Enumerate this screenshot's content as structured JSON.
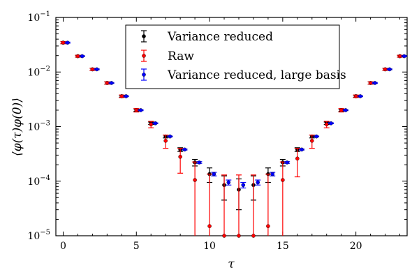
{
  "chart_data": {
    "type": "scatter",
    "title": "",
    "xlabel": "τ",
    "ylabel": "⟨φ(τ)φ(0)⟩",
    "xlim": [
      -0.5,
      23.5
    ],
    "ylim": [
      1e-05,
      0.1
    ],
    "yscale": "log",
    "x_ticks": [
      0,
      5,
      10,
      15,
      20
    ],
    "x_tick_labels": [
      "0",
      "5",
      "10",
      "15",
      "20"
    ],
    "y_ticks": [
      1e-05,
      0.0001,
      0.001,
      0.01,
      0.1
    ],
    "y_tick_labels": [
      {
        "base": "10",
        "exp": "−5"
      },
      {
        "base": "10",
        "exp": "−4"
      },
      {
        "base": "10",
        "exp": "−3"
      },
      {
        "base": "10",
        "exp": "−2"
      },
      {
        "base": "10",
        "exp": "−1"
      }
    ],
    "grid": false,
    "legend_position": "top-center",
    "series": [
      {
        "name": "Variance reduced",
        "color": "#000000",
        "x_offset": 0,
        "y": [
          0.0345,
          0.0195,
          0.0112,
          0.0063,
          0.0036,
          0.002,
          0.00115,
          0.00066,
          0.00038,
          0.00022,
          0.000135,
          8.5e-05,
          7e-05,
          8.5e-05,
          0.000135,
          0.00022,
          0.00038,
          0.00066,
          0.00115,
          0.002,
          0.0036,
          0.0063,
          0.0112,
          0.0195
        ],
        "err_lo": [
          0.0015,
          0.0008,
          0.0005,
          0.0003,
          0.00015,
          0.0001,
          6e-05,
          4e-05,
          3e-05,
          3e-05,
          4e-05,
          4e-05,
          4e-05,
          4e-05,
          4e-05,
          3e-05,
          3e-05,
          4e-05,
          6e-05,
          0.0001,
          0.00015,
          0.0003,
          0.0005,
          0.0008
        ],
        "err_hi": [
          0.0015,
          0.0008,
          0.0005,
          0.0003,
          0.00015,
          0.0001,
          6e-05,
          4e-05,
          3e-05,
          3e-05,
          4e-05,
          4e-05,
          4e-05,
          4e-05,
          4e-05,
          3e-05,
          3e-05,
          4e-05,
          6e-05,
          0.0001,
          0.00015,
          0.0003,
          0.0005,
          0.0008
        ]
      },
      {
        "name": "Raw",
        "color": "#ff0000",
        "x_offset": 0,
        "y": [
          0.0345,
          0.0195,
          0.0112,
          0.0063,
          0.0036,
          0.002,
          0.0011,
          0.00055,
          0.00028,
          0.000105,
          1.5e-05,
          1e-05,
          1e-05,
          1e-05,
          1.5e-05,
          0.000105,
          0.00026,
          0.00055,
          0.0011,
          0.002,
          0.0036,
          0.0063,
          0.0112,
          0.0195
        ],
        "err_lo": [
          0.0015,
          0.0008,
          0.0005,
          0.0003,
          0.0002,
          0.00015,
          0.00015,
          0.00015,
          0.00014,
          0.0002,
          0.0002,
          0.0002,
          0.0002,
          0.0002,
          0.0002,
          0.0002,
          0.00014,
          0.00015,
          0.00015,
          0.00015,
          0.0002,
          0.0003,
          0.0005,
          0.0008
        ],
        "err_hi": [
          0.0015,
          0.0008,
          0.0005,
          0.0003,
          0.0002,
          0.00015,
          0.00015,
          0.00015,
          0.00012,
          0.00012,
          0.00012,
          0.00012,
          0.00012,
          0.00012,
          0.00012,
          0.00012,
          0.00014,
          0.00015,
          0.00015,
          0.00015,
          0.0002,
          0.0003,
          0.0005,
          0.0008
        ]
      },
      {
        "name": "Variance reduced, large basis",
        "color": "#0000ff",
        "x_offset": 0.3,
        "y": [
          0.0345,
          0.0195,
          0.0112,
          0.0063,
          0.0036,
          0.002,
          0.00115,
          0.00066,
          0.00038,
          0.00022,
          0.000135,
          9.5e-05,
          8.5e-05,
          9.5e-05,
          0.000135,
          0.00022,
          0.00038,
          0.00066,
          0.00115,
          0.002,
          0.0036,
          0.0063,
          0.0112,
          0.0195
        ],
        "err_lo": [
          0.0008,
          0.0004,
          0.0002,
          0.00012,
          7e-05,
          4e-05,
          2e-05,
          1e-05,
          8e-06,
          8e-06,
          1e-05,
          1e-05,
          1e-05,
          1e-05,
          1e-05,
          8e-06,
          8e-06,
          1e-05,
          2e-05,
          4e-05,
          7e-05,
          0.00012,
          0.0002,
          0.0004
        ],
        "err_hi": [
          0.0008,
          0.0004,
          0.0002,
          0.00012,
          7e-05,
          4e-05,
          2e-05,
          1e-05,
          8e-06,
          8e-06,
          1e-05,
          1e-05,
          1e-05,
          1e-05,
          1e-05,
          8e-06,
          8e-06,
          1e-05,
          2e-05,
          4e-05,
          7e-05,
          0.00012,
          0.0002,
          0.0004
        ]
      }
    ]
  }
}
